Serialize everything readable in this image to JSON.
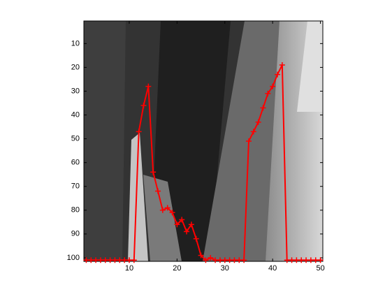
{
  "chart_data": {
    "type": "line",
    "x": [
      1,
      2,
      3,
      4,
      5,
      6,
      7,
      8,
      9,
      10,
      11,
      12,
      13,
      14,
      15,
      16,
      17,
      18,
      19,
      20,
      21,
      22,
      23,
      24,
      25,
      26,
      27,
      28,
      29,
      30,
      31,
      32,
      33,
      34,
      35,
      36,
      37,
      38,
      39,
      40,
      41,
      42,
      43,
      44,
      45,
      46,
      47,
      48,
      49,
      50
    ],
    "series": [
      {
        "color": "#ff0000",
        "marker": "+",
        "values": [
          101,
          101,
          101,
          101,
          101,
          101,
          101,
          101,
          101,
          101,
          101,
          47,
          36,
          28,
          64,
          72,
          80,
          79,
          81,
          86,
          84,
          89,
          86,
          92,
          99,
          101,
          100,
          101,
          101,
          101,
          101,
          101,
          101,
          101,
          51,
          47,
          43,
          37,
          31,
          28,
          23,
          19,
          101,
          101,
          101,
          101,
          101,
          101,
          101,
          101
        ]
      }
    ],
    "xlim": [
      0.5,
      50.5
    ],
    "ylim": [
      0.5,
      101.5
    ],
    "y_reversed": true,
    "xticks": [
      10,
      20,
      30,
      40,
      50
    ],
    "yticks": [
      10,
      20,
      30,
      40,
      50,
      60,
      70,
      80,
      90,
      100
    ]
  }
}
